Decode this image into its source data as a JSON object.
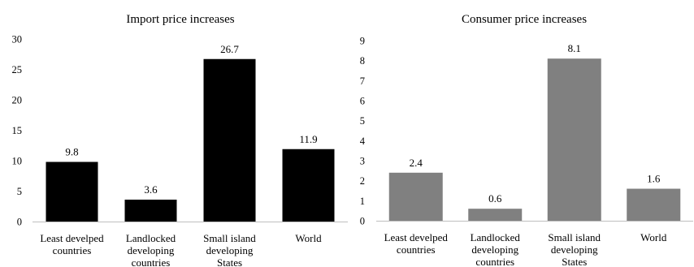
{
  "chart_data": [
    {
      "type": "bar",
      "title": "Import price increases",
      "categories": [
        [
          "Least develped",
          "countries"
        ],
        [
          "Landlocked",
          "developing",
          "countries"
        ],
        [
          "Small island",
          "developing",
          "States"
        ],
        [
          "World"
        ]
      ],
      "values": [
        9.8,
        3.6,
        26.7,
        11.9
      ],
      "data_labels": [
        "9.8",
        "3.6",
        "26.7",
        "11.9"
      ],
      "ylim": [
        0,
        30
      ],
      "yticks": [
        "0",
        "5",
        "10",
        "15",
        "20",
        "25",
        "30"
      ],
      "bar_color": "#000000",
      "xlabel": "",
      "ylabel": "",
      "grid": false,
      "legend": "none"
    },
    {
      "type": "bar",
      "title": "Consumer  price increases",
      "categories": [
        [
          "Least develped",
          "countries"
        ],
        [
          "Landlocked",
          "developing",
          "countries"
        ],
        [
          "Small island",
          "developing",
          "States"
        ],
        [
          "World"
        ]
      ],
      "values": [
        2.4,
        0.6,
        8.1,
        1.6
      ],
      "data_labels": [
        "2.4",
        "0.6",
        "8.1",
        "1.6"
      ],
      "ylim": [
        0,
        9
      ],
      "yticks": [
        "0",
        "1",
        "2",
        "3",
        "4",
        "5",
        "6",
        "7",
        "8",
        "9"
      ],
      "bar_color": "#808080",
      "xlabel": "",
      "ylabel": "",
      "grid": false,
      "legend": "none"
    }
  ]
}
